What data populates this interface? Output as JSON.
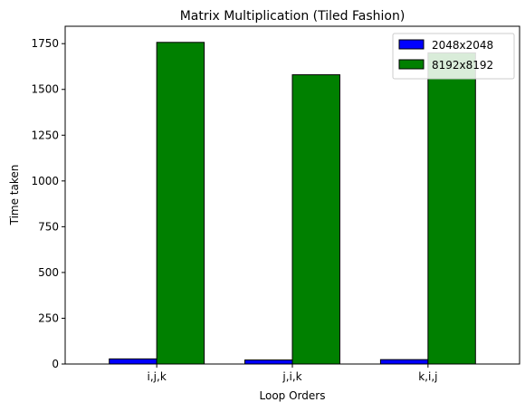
{
  "chart_data": {
    "type": "bar",
    "title": "Matrix Multiplication (Tiled Fashion)",
    "xlabel": "Loop Orders",
    "ylabel": "Time taken",
    "categories": [
      "i,j,k",
      "j,i,k",
      "k,i,j"
    ],
    "series": [
      {
        "name": "2048x2048",
        "color": "#0000ff",
        "values": [
          28,
          22,
          24
        ]
      },
      {
        "name": "8192x8192",
        "color": "#008000",
        "values": [
          1757,
          1580,
          1700
        ]
      }
    ],
    "ylim": [
      0,
      1845
    ],
    "yticks": [
      "0",
      "250",
      "500",
      "750",
      "1000",
      "1250",
      "1500",
      "1750"
    ],
    "grid": false,
    "legend_position": "top-right"
  }
}
